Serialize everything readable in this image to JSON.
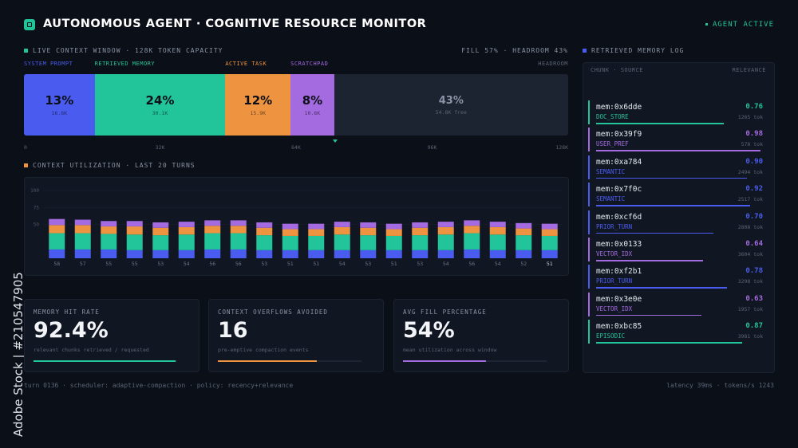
{
  "header": {
    "title": "AUTONOMOUS AGENT · COGNITIVE RESOURCE MONITOR",
    "status": "AGENT ACTIVE"
  },
  "context_window": {
    "title": "LIVE CONTEXT WINDOW · 128K TOKEN CAPACITY",
    "summary": "FILL 57% · HEADROOM 43%",
    "segments": [
      {
        "label": "SYSTEM PROMPT",
        "percent": "13%",
        "tokens": "16.6K",
        "color": "#4a5cf0"
      },
      {
        "label": "RETRIEVED MEMORY",
        "percent": "24%",
        "tokens": "30.1K",
        "color": "#22c49a"
      },
      {
        "label": "ACTIVE TASK",
        "percent": "12%",
        "tokens": "15.9K",
        "color": "#ee9440"
      },
      {
        "label": "SCRATCHPAD",
        "percent": "8%",
        "tokens": "10.6K",
        "color": "#a46ae0"
      },
      {
        "label": "HEADROOM",
        "percent": "43%",
        "tokens": "54.8K free",
        "color": "#1c2432"
      }
    ],
    "axis": [
      "0",
      "32K",
      "64K",
      "96K",
      "128K"
    ]
  },
  "utilization": {
    "type": "bar",
    "title": "CONTEXT UTILIZATION · LAST 20 TURNS",
    "ylim": [
      0,
      100
    ],
    "yticks": [
      100,
      75,
      50
    ],
    "totals": [
      58,
      57,
      55,
      55,
      53,
      54,
      56,
      56,
      53,
      51,
      51,
      54,
      53,
      51,
      53,
      54,
      56,
      54,
      52,
      51
    ],
    "series": [
      {
        "color": "#4a5cf0",
        "values": [
          13,
          13,
          13,
          12,
          12,
          12,
          13,
          13,
          12,
          12,
          12,
          12,
          12,
          12,
          12,
          12,
          13,
          12,
          12,
          12
        ]
      },
      {
        "color": "#22c49a",
        "values": [
          24,
          24,
          23,
          23,
          22,
          23,
          24,
          24,
          22,
          21,
          21,
          23,
          22,
          21,
          22,
          23,
          24,
          23,
          22,
          21
        ]
      },
      {
        "color": "#ee9440",
        "values": [
          12,
          12,
          11,
          12,
          11,
          11,
          11,
          11,
          11,
          10,
          10,
          11,
          11,
          10,
          11,
          11,
          11,
          11,
          10,
          10
        ]
      },
      {
        "color": "#a46ae0",
        "values": [
          9,
          8,
          8,
          8,
          8,
          8,
          8,
          8,
          8,
          8,
          8,
          8,
          8,
          8,
          8,
          8,
          8,
          8,
          8,
          8
        ]
      }
    ]
  },
  "cards": [
    {
      "label": "MEMORY HIT RATE",
      "value": "92.4%",
      "note": "relevant chunks retrieved / requested",
      "color": "#22c49a"
    },
    {
      "label": "CONTEXT OVERFLOWS AVOIDED",
      "value": "16",
      "note": "pre-emptive compaction events",
      "color": "#ee9440"
    },
    {
      "label": "AVG FILL PERCENTAGE",
      "value": "54%",
      "note": "mean utilization across window",
      "color": "#a46ae0"
    }
  ],
  "memory_log": {
    "title": "RETRIEVED MEMORY LOG",
    "columns": [
      "CHUNK · SOURCE",
      "RELEVANCE"
    ],
    "items": [
      {
        "id": "mem:0x6dde",
        "relevance": "0.76",
        "source": "DOC_STORE",
        "tokens": "1265 tok",
        "color": "#22c49a"
      },
      {
        "id": "mem:0x39f9",
        "relevance": "0.98",
        "source": "USER_PREF",
        "tokens": "578 tok",
        "color": "#a46ae0"
      },
      {
        "id": "mem:0xa784",
        "relevance": "0.90",
        "source": "SEMANTIC",
        "tokens": "2494 tok",
        "color": "#4a5cf0"
      },
      {
        "id": "mem:0x7f0c",
        "relevance": "0.92",
        "source": "SEMANTIC",
        "tokens": "2517 tok",
        "color": "#4a5cf0"
      },
      {
        "id": "mem:0xcf6d",
        "relevance": "0.70",
        "source": "PRIOR_TURN",
        "tokens": "2808 tok",
        "color": "#4a5cf0"
      },
      {
        "id": "mem:0x0133",
        "relevance": "0.64",
        "source": "VECTOR_IDX",
        "tokens": "3604 tok",
        "color": "#a46ae0"
      },
      {
        "id": "mem:0xf2b1",
        "relevance": "0.78",
        "source": "PRIOR_TURN",
        "tokens": "3298 tok",
        "color": "#4a5cf0"
      },
      {
        "id": "mem:0x3e0e",
        "relevance": "0.63",
        "source": "VECTOR_IDX",
        "tokens": "1957 tok",
        "color": "#a46ae0"
      },
      {
        "id": "mem:0xbc85",
        "relevance": "0.87",
        "source": "EPISODIC",
        "tokens": "3981 tok",
        "color": "#22c49a"
      }
    ]
  },
  "footer": {
    "left": "turn 0136 · scheduler: adaptive-compaction · policy: recency+relevance",
    "right": "latency 39ms · tokens/s 1243"
  },
  "watermark": "Adobe Stock | #210547905"
}
